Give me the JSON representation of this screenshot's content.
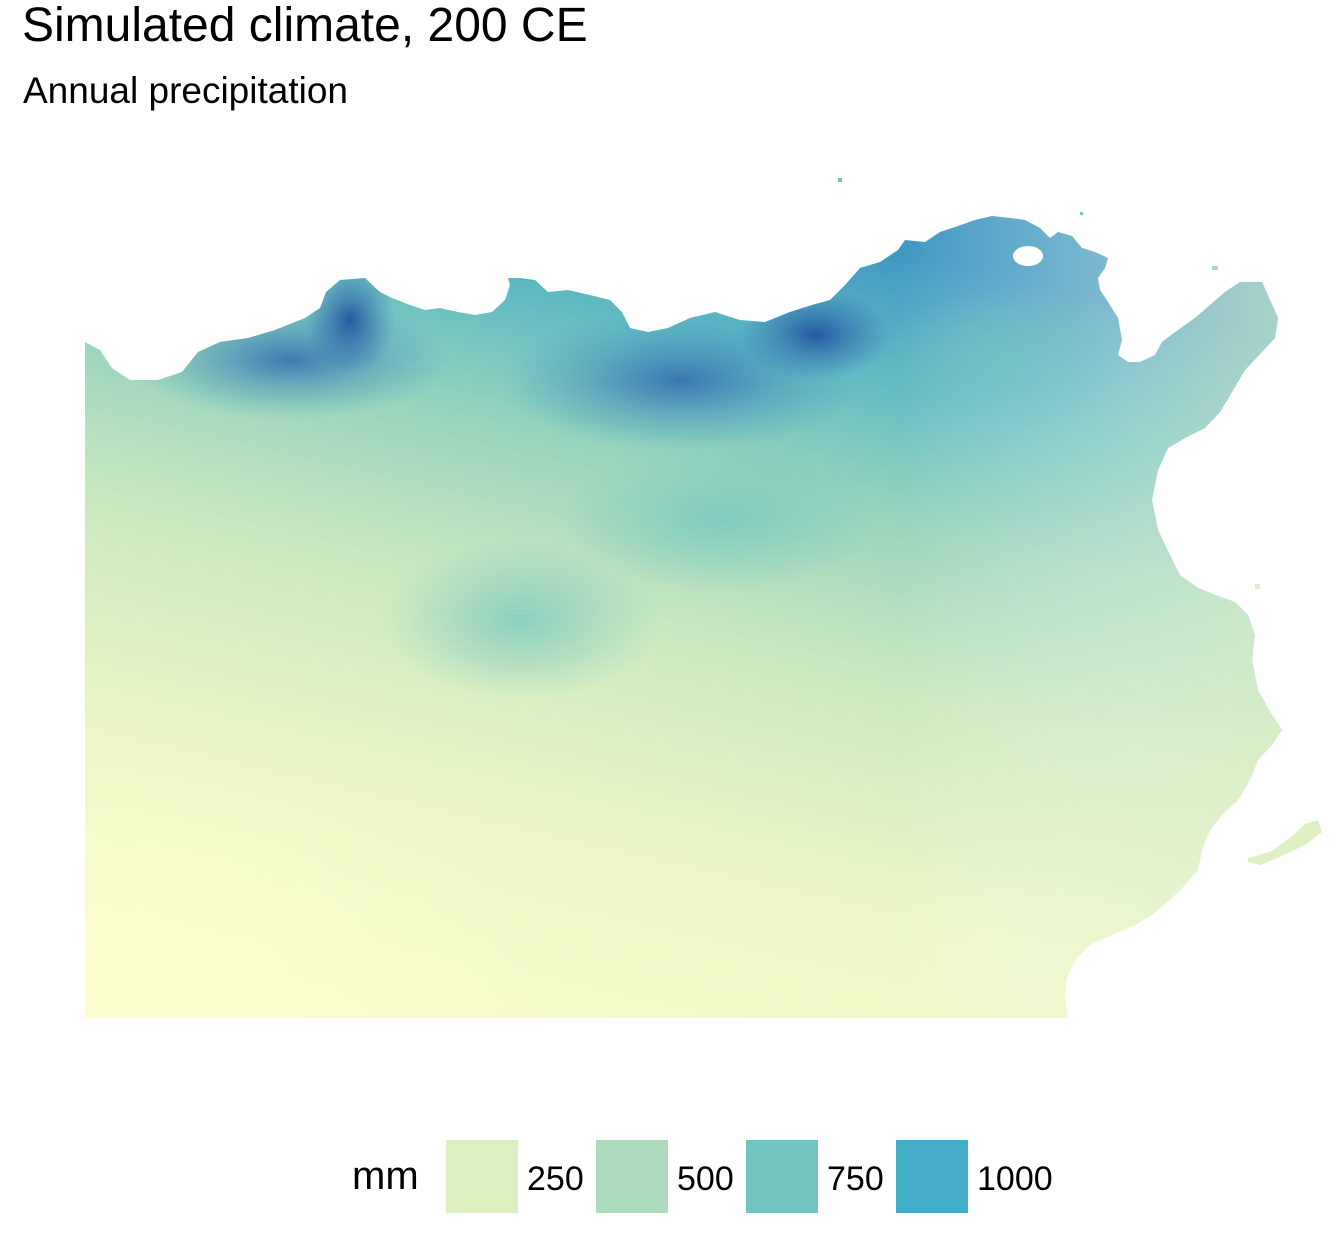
{
  "title": "Simulated climate, 200 CE",
  "subtitle": "Annual precipitation",
  "legend": {
    "title": "mm",
    "items": [
      {
        "label": "250",
        "color": "#dcf0c2"
      },
      {
        "label": "500",
        "color": "#acdcbd"
      },
      {
        "label": "750",
        "color": "#72c4c0"
      },
      {
        "label": "1000",
        "color": "#43acc6"
      }
    ]
  },
  "colors": {
    "dry": "#fbfdcb",
    "light": "#e8f5c4",
    "mid": "#acdcbd",
    "wet": "#72c4c0",
    "wetter": "#43acc6",
    "wettest": "#2a63ad"
  }
}
